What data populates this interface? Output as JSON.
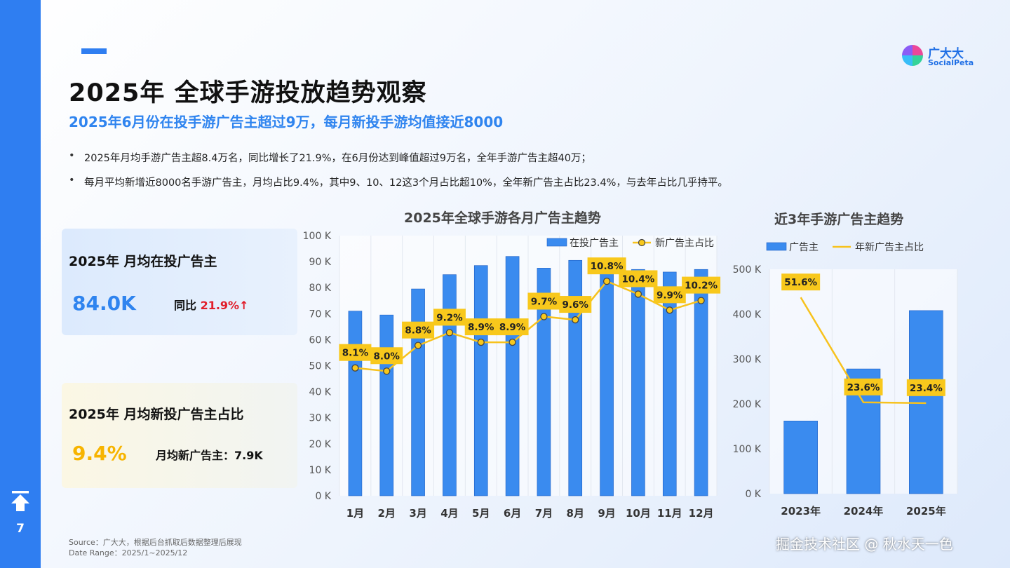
{
  "page": {
    "number": "7",
    "title": "2025年 全球手游投放趋势观察",
    "subtitle": "2025年6月份在投手游广告主超过9万，每月新投手游均值接近8000",
    "bullets": [
      "2025年月均手游广告主超8.4万名，同比增长了21.9%，在6月份达到峰值超过9万名，全年手游广告主超40万；",
      "每月平均新增近8000名手游广告主，月均占比9.4%，其中9、10、12这3个月占比超10%，全年新广告主占比23.4%，与去年占比几乎持平。"
    ],
    "source": "Source：广大大，根据后台抓取后数据整理后展现",
    "date_range": "Date Range：2025/1~2025/12",
    "watermark": "掘金技术社区 @ 秋水天一色"
  },
  "logo": {
    "cn": "广大大",
    "en": "SocialPeta"
  },
  "cards": {
    "monthly_active": {
      "title": "2025年 月均在投广告主",
      "value": "84.0K",
      "yoy_label": "同比 ",
      "yoy_value": "21.9%↑"
    },
    "monthly_new": {
      "title": "2025年 月均新投广告主占比",
      "value": "9.4%",
      "side_text": "月均新广告主：7.9K"
    }
  },
  "colors": {
    "accent": "#2f7ef1",
    "bar": "#3a8bef",
    "line": "#f7c21d",
    "label_bg": "#f8c81c",
    "yoy": "#e11d2a"
  },
  "chart_data": [
    {
      "type": "bar",
      "title": "2025年全球手游各月广告主趋势",
      "categories": [
        "1月",
        "2月",
        "3月",
        "4月",
        "5月",
        "6月",
        "7月",
        "8月",
        "9月",
        "10月",
        "11月",
        "12月"
      ],
      "ylim": [
        0,
        100
      ],
      "yticks": [
        "0 K",
        "10 K",
        "20 K",
        "30 K",
        "40 K",
        "50 K",
        "60 K",
        "70 K",
        "80 K",
        "90 K",
        "100 K"
      ],
      "legend": [
        "在投广告主",
        "新广告主占比"
      ],
      "series": [
        {
          "name": "在投广告主",
          "type": "bar",
          "values": [
            71,
            69.5,
            79.5,
            85,
            88.5,
            92,
            87.5,
            90.5,
            86,
            87,
            86,
            87
          ]
        },
        {
          "name": "新广告主占比",
          "type": "line",
          "values": [
            8.1,
            8.0,
            8.8,
            9.2,
            8.9,
            8.9,
            9.7,
            9.6,
            10.8,
            10.4,
            9.9,
            10.2
          ],
          "labels": [
            "8.1%",
            "8.0%",
            "8.8%",
            "9.2%",
            "8.9%",
            "8.9%",
            "9.7%",
            "9.6%",
            "10.8%",
            "10.4%",
            "9.9%",
            "10.2%"
          ]
        }
      ]
    },
    {
      "type": "bar",
      "title": "近3年手游广告主趋势",
      "categories": [
        "2023年",
        "2024年",
        "2025年"
      ],
      "ylim": [
        0,
        500
      ],
      "yticks": [
        "0 K",
        "100 K",
        "200 K",
        "300 K",
        "400 K",
        "500 K"
      ],
      "legend": [
        "广告主",
        "年新广告主占比"
      ],
      "series": [
        {
          "name": "广告主",
          "type": "bar",
          "values": [
            162,
            278,
            408
          ]
        },
        {
          "name": "年新广告主占比",
          "type": "line",
          "values": [
            51.6,
            23.6,
            23.4
          ],
          "labels": [
            "51.6%",
            "23.6%",
            "23.4%"
          ]
        }
      ]
    }
  ]
}
